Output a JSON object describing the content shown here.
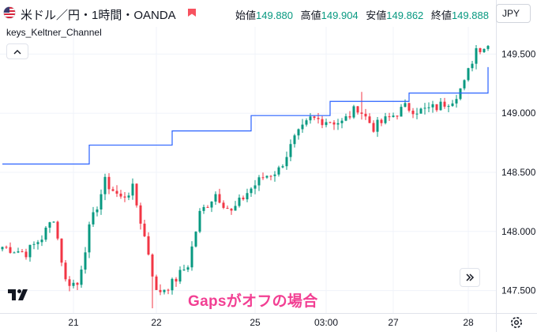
{
  "header": {
    "symbol_title": "米ドル／円・1時間・OANDA",
    "ohlc": [
      {
        "label": "始値",
        "value": "149.880"
      },
      {
        "label": "高値",
        "value": "149.904"
      },
      {
        "label": "安値",
        "value": "149.862"
      },
      {
        "label": "終値",
        "value": "149.888"
      }
    ]
  },
  "currency_button": "JPY",
  "indicator": {
    "name": "keys_Keltner_Channel"
  },
  "caption": "Gapsがオフの場合",
  "colors": {
    "up": "#089981",
    "down": "#f23645",
    "channel": "#2962ff",
    "caption": "#f23f93",
    "grid": "#f0f3fa"
  },
  "icons": [
    "us-flag-icon",
    "market-status-icon",
    "collapse-chevron-icon",
    "scroll-to-latest-icon",
    "tradingview-logo-icon",
    "settings-gear-icon"
  ],
  "chart_data": {
    "type": "candlestick",
    "title": "",
    "y_ticks": [
      "149.500",
      "149.000",
      "148.500",
      "148.000",
      "147.500"
    ],
    "y_tick_values": [
      149.5,
      149.0,
      148.5,
      148.0,
      147.5
    ],
    "ylim": [
      147.31,
      149.73
    ],
    "x_ticks": [
      "21",
      "22",
      "25",
      "03:00",
      "27",
      "28"
    ],
    "x_tick_index": [
      18,
      39,
      64,
      82,
      99,
      118
    ],
    "bar_count": 124,
    "grid": true,
    "price_anchors": [
      [
        0,
        147.87
      ],
      [
        6,
        147.82
      ],
      [
        10,
        147.95
      ],
      [
        13,
        148.12
      ],
      [
        16,
        147.58
      ],
      [
        19,
        147.55
      ],
      [
        22,
        148.02
      ],
      [
        26,
        148.42
      ],
      [
        30,
        148.28
      ],
      [
        33,
        148.36
      ],
      [
        37,
        147.82
      ],
      [
        39,
        147.48
      ],
      [
        43,
        147.56
      ],
      [
        47,
        147.72
      ],
      [
        50,
        148.15
      ],
      [
        54,
        148.32
      ],
      [
        58,
        148.16
      ],
      [
        62,
        148.33
      ],
      [
        66,
        148.46
      ],
      [
        70,
        148.52
      ],
      [
        74,
        148.78
      ],
      [
        78,
        148.95
      ],
      [
        82,
        148.94
      ],
      [
        86,
        148.92
      ],
      [
        90,
        149.05
      ],
      [
        94,
        148.88
      ],
      [
        98,
        148.96
      ],
      [
        102,
        149.05
      ],
      [
        106,
        149.02
      ],
      [
        110,
        149.05
      ],
      [
        114,
        149.12
      ],
      [
        117,
        149.25
      ],
      [
        120,
        149.55
      ],
      [
        123,
        149.57
      ]
    ],
    "spikes": [
      {
        "index": 91,
        "high": 149.18
      },
      {
        "index": 95,
        "low": 148.8
      },
      {
        "index": 38,
        "low": 147.35
      }
    ],
    "channel_upper": {
      "segments": [
        {
          "from": 0,
          "to": 22,
          "value": 148.57
        },
        {
          "from": 22,
          "to": 43,
          "value": 148.73
        },
        {
          "from": 43,
          "to": 63,
          "value": 148.85
        },
        {
          "from": 63,
          "to": 83,
          "value": 148.98
        },
        {
          "from": 83,
          "to": 103,
          "value": 149.1
        },
        {
          "from": 103,
          "to": 123,
          "value": 149.17
        }
      ],
      "last_value": 149.39
    }
  }
}
